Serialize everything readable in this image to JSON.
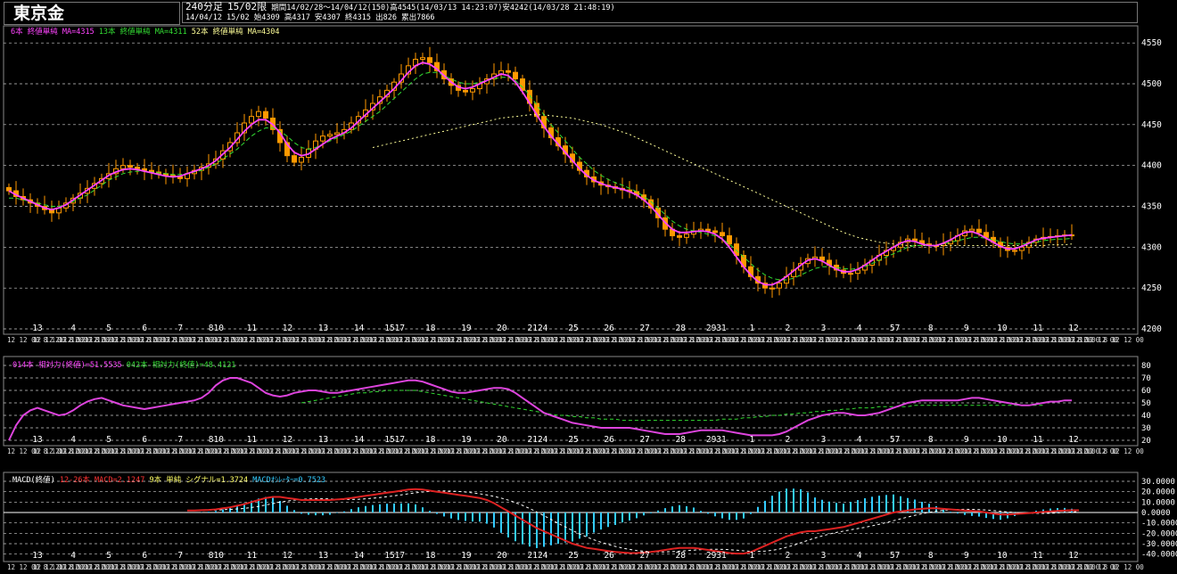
{
  "header": {
    "symbol": "東京金",
    "timeframe": "240分足",
    "contract": "15/02限",
    "period": "期間14/02/28～14/04/12(150)",
    "high_summary": "高4545(14/03/13 14:23:07)",
    "low_summary": "安4242(14/03/28 21:48:19)",
    "bar_info": "14/04/12 15/02 始4309 高4317 安4307 終4315 出826 累出7866"
  },
  "legends": {
    "price": [
      {
        "text": "6本 終値単純 MA=4315",
        "color": "#ff44ff"
      },
      {
        "text": "13本 終値単純 MA=4311",
        "color": "#33dd33"
      },
      {
        "text": "52本 終値単純 MA=4304",
        "color": "#ffff99"
      }
    ],
    "rsi": [
      {
        "text": "014本 相対力(終値)=51.5535",
        "color": "#ff44ff"
      },
      {
        "text": "042本 相対力(終値)=48.4121",
        "color": "#33dd33"
      }
    ],
    "macd": [
      {
        "text": "MACD(終値)",
        "color": "#ffffff"
      },
      {
        "text": "12-26本 MACD=2.1247",
        "color": "#ff3333"
      },
      {
        "text": "9本 単純 シグナル=1.3724",
        "color": "#ffff66"
      },
      {
        "text": "MACDｵｼﾚｰﾀｰ=0.7523",
        "color": "#33ccff"
      }
    ]
  },
  "colors": {
    "candle": "#ff9900",
    "ma6": "#ff44ff",
    "ma13": "#33dd33",
    "ma52": "#ffff99",
    "rsi14": "#dd44dd",
    "rsi42": "#33dd33",
    "macd": "#dd2222",
    "signal": "#ffffff",
    "hist": "#33ccff",
    "grid": "#cccccc"
  },
  "date_labels": [
    "13",
    "4",
    "5",
    "6",
    "7",
    "810",
    "11",
    "12",
    "13",
    "14",
    "1517",
    "18",
    "19",
    "20",
    "2124",
    "25",
    "26",
    "27",
    "28",
    "2931",
    "1",
    "2",
    "3",
    "4",
    "57",
    "8",
    "9",
    "10",
    "11",
    "12"
  ],
  "time_row_text": "12 12 00 8 12 12 00",
  "chart_data": [
    {
      "type": "candlestick",
      "title": "",
      "ylim": [
        4200,
        4560
      ],
      "y_ticks": [
        4200,
        4250,
        4300,
        4350,
        4400,
        4450,
        4500,
        4550
      ],
      "close": [
        4369,
        4362,
        4358,
        4354,
        4350,
        4346,
        4342,
        4348,
        4354,
        4360,
        4366,
        4372,
        4378,
        4384,
        4390,
        4396,
        4400,
        4398,
        4396,
        4394,
        4392,
        4390,
        4388,
        4386,
        4384,
        4390,
        4394,
        4398,
        4402,
        4408,
        4418,
        4428,
        4440,
        4452,
        4460,
        4466,
        4458,
        4444,
        4428,
        4412,
        4404,
        4410,
        4420,
        4430,
        4436,
        4438,
        4440,
        4444,
        4452,
        4460,
        4468,
        4476,
        4484,
        4492,
        4502,
        4512,
        4522,
        4530,
        4532,
        4526,
        4516,
        4506,
        4498,
        4492,
        4490,
        4494,
        4500,
        4506,
        4512,
        4516,
        4514,
        4506,
        4492,
        4476,
        4460,
        4446,
        4434,
        4424,
        4414,
        4404,
        4394,
        4386,
        4380,
        4376,
        4374,
        4372,
        4370,
        4368,
        4364,
        4358,
        4348,
        4336,
        4322,
        4314,
        4312,
        4316,
        4320,
        4322,
        4320,
        4318,
        4314,
        4304,
        4290,
        4276,
        4264,
        4256,
        4250,
        4250,
        4256,
        4264,
        4272,
        4280,
        4286,
        4288,
        4284,
        4278,
        4272,
        4268,
        4268,
        4272,
        4278,
        4284,
        4290,
        4296,
        4300,
        4306,
        4310,
        4308,
        4304,
        4302,
        4302,
        4304,
        4308,
        4314,
        4320,
        4322,
        4318,
        4312,
        4306,
        4300,
        4296,
        4296,
        4300,
        4306,
        4310,
        4312,
        4313,
        4314,
        4315,
        4315
      ],
      "ma6": [
        4369,
        4364,
        4360,
        4356,
        4352,
        4348,
        4346,
        4348,
        4352,
        4358,
        4364,
        4370,
        4376,
        4382,
        4388,
        4392,
        4395,
        4396,
        4395,
        4393,
        4391,
        4389,
        4387,
        4386,
        4387,
        4390,
        4393,
        4396,
        4400,
        4406,
        4414,
        4422,
        4432,
        4442,
        4450,
        4456,
        4456,
        4450,
        4440,
        4426,
        4416,
        4412,
        4414,
        4420,
        4426,
        4432,
        4436,
        4440,
        4446,
        4454,
        4462,
        4470,
        4478,
        4486,
        4494,
        4504,
        4514,
        4522,
        4526,
        4524,
        4518,
        4510,
        4502,
        4496,
        4494,
        4496,
        4500,
        4504,
        4508,
        4512,
        4510,
        4502,
        4490,
        4476,
        4462,
        4448,
        4436,
        4426,
        4416,
        4406,
        4396,
        4388,
        4382,
        4378,
        4375,
        4373,
        4371,
        4368,
        4364,
        4358,
        4350,
        4340,
        4330,
        4322,
        4318,
        4318,
        4319,
        4320,
        4319,
        4316,
        4310,
        4300,
        4288,
        4276,
        4266,
        4258,
        4254,
        4254,
        4258,
        4264,
        4271,
        4278,
        4284,
        4286,
        4283,
        4278,
        4273,
        4270,
        4270,
        4273,
        4278,
        4284,
        4290,
        4295,
        4300,
        4305,
        4308,
        4307,
        4304,
        4302,
        4302,
        4305,
        4309,
        4314,
        4318,
        4319,
        4316,
        4311,
        4306,
        4301,
        4298,
        4298,
        4301,
        4305,
        4309,
        4311,
        4312,
        4313,
        4314,
        4315
      ],
      "ma13": [
        4360,
        4360,
        4358,
        4356,
        4354,
        4352,
        4350,
        4350,
        4352,
        4356,
        4360,
        4364,
        4370,
        4376,
        4382,
        4386,
        4390,
        4392,
        4393,
        4393,
        4392,
        4391,
        4390,
        4389,
        4389,
        4390,
        4392,
        4394,
        4398,
        4402,
        4408,
        4414,
        4420,
        4428,
        4436,
        4442,
        4446,
        4446,
        4442,
        4436,
        4428,
        4422,
        4420,
        4422,
        4426,
        4430,
        4434,
        4438,
        4442,
        4448,
        4454,
        4460,
        4466,
        4474,
        4482,
        4490,
        4498,
        4506,
        4512,
        4514,
        4514,
        4510,
        4506,
        4502,
        4500,
        4500,
        4502,
        4504,
        4506,
        4508,
        4508,
        4504,
        4496,
        4486,
        4474,
        4462,
        4450,
        4440,
        4430,
        4420,
        4410,
        4402,
        4394,
        4388,
        4383,
        4379,
        4376,
        4372,
        4368,
        4362,
        4356,
        4348,
        4340,
        4332,
        4326,
        4322,
        4320,
        4318,
        4316,
        4314,
        4310,
        4304,
        4296,
        4288,
        4280,
        4272,
        4266,
        4262,
        4260,
        4260,
        4262,
        4266,
        4270,
        4274,
        4276,
        4276,
        4275,
        4274,
        4273,
        4274,
        4276,
        4280,
        4284,
        4288,
        4292,
        4296,
        4300,
        4302,
        4302,
        4302,
        4302,
        4304,
        4306,
        4308,
        4310,
        4312,
        4312,
        4311,
        4309,
        4307,
        4305,
        4304,
        4304,
        4305,
        4306,
        4308,
        4309,
        4310,
        4310,
        4311
      ],
      "ma52": [
        null,
        null,
        null,
        null,
        null,
        null,
        null,
        null,
        null,
        null,
        null,
        null,
        null,
        null,
        null,
        null,
        null,
        null,
        null,
        null,
        null,
        null,
        null,
        null,
        null,
        null,
        null,
        null,
        null,
        null,
        null,
        null,
        null,
        null,
        null,
        null,
        null,
        null,
        null,
        null,
        null,
        null,
        null,
        null,
        null,
        null,
        null,
        null,
        null,
        null,
        null,
        4422,
        4424,
        4426,
        4428,
        4430,
        4432,
        4434,
        4436,
        4438,
        4440,
        4442,
        4444,
        4446,
        4448,
        4450,
        4452,
        4454,
        4456,
        4458,
        4459,
        4460,
        4461,
        4462,
        4462,
        4462,
        4461,
        4460,
        4459,
        4458,
        4456,
        4454,
        4452,
        4450,
        4447,
        4444,
        4441,
        4438,
        4434,
        4430,
        4426,
        4422,
        4418,
        4414,
        4410,
        4406,
        4402,
        4398,
        4394,
        4390,
        4386,
        4382,
        4378,
        4374,
        4370,
        4366,
        4362,
        4358,
        4354,
        4350,
        4346,
        4342,
        4338,
        4334,
        4330,
        4326,
        4322,
        4318,
        4315,
        4312,
        4310,
        4308,
        4306,
        4305,
        4304,
        4303,
        4302,
        4302,
        4302,
        4302,
        4302,
        4302,
        4302,
        4302,
        4302,
        4302,
        4302,
        4302,
        4302,
        4302,
        4302,
        4302,
        4302,
        4302,
        4302,
        4302,
        4303,
        4303,
        4303,
        4304
      ]
    },
    {
      "type": "line",
      "title": "",
      "ylim": [
        20,
        80
      ],
      "y_ticks": [
        20,
        30,
        40,
        50,
        60,
        70,
        80
      ],
      "rsi14": [
        20,
        32,
        40,
        44,
        46,
        44,
        42,
        40,
        41,
        44,
        48,
        51,
        53,
        54,
        52,
        50,
        48,
        47,
        46,
        45,
        46,
        47,
        48,
        49,
        50,
        51,
        52,
        54,
        58,
        64,
        68,
        70,
        70,
        68,
        66,
        62,
        58,
        56,
        55,
        56,
        58,
        59,
        60,
        60,
        59,
        58,
        58,
        59,
        60,
        61,
        62,
        63,
        64,
        65,
        66,
        67,
        68,
        68,
        67,
        65,
        63,
        61,
        59,
        58,
        58,
        59,
        60,
        61,
        62,
        62,
        61,
        58,
        54,
        50,
        46,
        42,
        40,
        38,
        36,
        34,
        33,
        32,
        31,
        30,
        30,
        30,
        30,
        30,
        29,
        28,
        27,
        26,
        25,
        25,
        25,
        26,
        27,
        28,
        28,
        28,
        28,
        27,
        26,
        25,
        24,
        24,
        24,
        24,
        25,
        27,
        30,
        33,
        36,
        38,
        40,
        41,
        42,
        42,
        41,
        40,
        40,
        41,
        42,
        44,
        46,
        48,
        50,
        51,
        52,
        52,
        52,
        52,
        52,
        52,
        53,
        54,
        54,
        53,
        52,
        51,
        50,
        49,
        48,
        48,
        49,
        50,
        51,
        51,
        52,
        52
      ],
      "rsi42": [
        null,
        null,
        null,
        null,
        null,
        null,
        null,
        null,
        null,
        null,
        null,
        null,
        null,
        null,
        null,
        null,
        null,
        null,
        null,
        null,
        null,
        null,
        null,
        null,
        null,
        null,
        null,
        null,
        null,
        null,
        null,
        null,
        null,
        null,
        null,
        null,
        null,
        null,
        null,
        null,
        null,
        50,
        51,
        52,
        53,
        54,
        55,
        56,
        57,
        58,
        58,
        59,
        59,
        60,
        60,
        60,
        60,
        60,
        59,
        58,
        57,
        56,
        55,
        54,
        53,
        52,
        51,
        50,
        49,
        48,
        47,
        46,
        45,
        44,
        43,
        42,
        41,
        40,
        40,
        39,
        39,
        38,
        38,
        37,
        37,
        37,
        36,
        36,
        36,
        36,
        36,
        36,
        36,
        36,
        36,
        36,
        36,
        36,
        36,
        36,
        37,
        37,
        37,
        38,
        38,
        39,
        39,
        40,
        40,
        41,
        41,
        42,
        42,
        43,
        43,
        44,
        44,
        45,
        45,
        46,
        46,
        46,
        47,
        47,
        47,
        47,
        47,
        48,
        48,
        48,
        48,
        48,
        48,
        48,
        48,
        48,
        48,
        48,
        48,
        48,
        48,
        48,
        48,
        48,
        48,
        48
      ]
    },
    {
      "type": "line",
      "title": "",
      "ylim": [
        -42,
        30
      ],
      "y_ticks": [
        30,
        20,
        10,
        0,
        -10,
        -20,
        -30,
        -40
      ],
      "y_tick_labels": [
        "30.0000",
        "20.0000",
        "10.0000",
        "0.0000",
        "-10.0000",
        "-20.0000",
        "-30.0000",
        "-40.0000"
      ],
      "macd": [
        null,
        null,
        null,
        null,
        null,
        null,
        null,
        null,
        null,
        null,
        null,
        null,
        null,
        null,
        null,
        null,
        null,
        null,
        null,
        null,
        null,
        null,
        null,
        null,
        null,
        2,
        2,
        2.2,
        2.5,
        3,
        4,
        5,
        6.5,
        8,
        10,
        12,
        14,
        15,
        15,
        14,
        13,
        12,
        12,
        12,
        12,
        12,
        12.5,
        13,
        14,
        15,
        16,
        17,
        18,
        19,
        20,
        21,
        22,
        22.5,
        22,
        21,
        20,
        19,
        18,
        17,
        16,
        15,
        14,
        12,
        9,
        5,
        1,
        -3,
        -7,
        -11,
        -15,
        -18,
        -21,
        -24,
        -27,
        -30,
        -32,
        -34,
        -35,
        -36,
        -37,
        -38,
        -38.5,
        -39,
        -39,
        -38.5,
        -38,
        -37,
        -36,
        -35,
        -34,
        -34,
        -34,
        -35,
        -36,
        -37,
        -38,
        -39,
        -39.5,
        -39.5,
        -38,
        -35,
        -32,
        -29,
        -26,
        -23,
        -21,
        -19,
        -18,
        -18,
        -17,
        -16,
        -15,
        -14,
        -12,
        -10,
        -8,
        -6,
        -4,
        -2,
        0,
        1,
        2,
        3,
        3.5,
        4,
        4,
        3.5,
        3,
        2.5,
        2,
        1.5,
        1,
        0,
        -1,
        -2,
        -2,
        -1.5,
        -1,
        -0.5,
        0,
        0.5,
        1,
        1.5,
        2,
        2.1,
        2.1
      ]
    }
  ]
}
